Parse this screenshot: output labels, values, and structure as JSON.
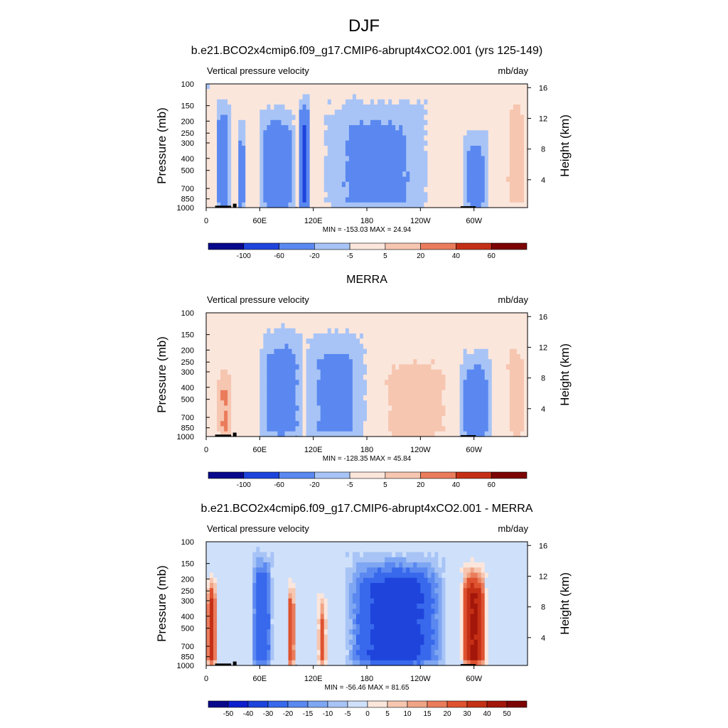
{
  "figure": {
    "title": "DJF"
  },
  "colors": {
    "main": [
      "#08088c",
      "#0d1ecc",
      "#1e44dc",
      "#3868ec",
      "#5a88f0",
      "#7ea6f2",
      "#a8c4f6",
      "#cfe0fa",
      "#fbe6dc",
      "#f6c6b0",
      "#f0a486",
      "#ea7c5c",
      "#de5230",
      "#c43016",
      "#a3160a",
      "#7c0404"
    ],
    "diff": [
      "#08088c",
      "#0d1ecc",
      "#1e44dc",
      "#3868ec",
      "#5a88f0",
      "#7ea6f2",
      "#a8c4f6",
      "#cfe0fa",
      "#fbe6dc",
      "#f6c6b0",
      "#f0a486",
      "#ea7c5c",
      "#de5230",
      "#c43016",
      "#a3160a",
      "#7c0404"
    ]
  },
  "panels": [
    {
      "title": "b.e21.BCO2x4cmip6.f09_g17.CMIP6-abrupt4xCO2.001 (yrs 125-149)",
      "left_label": "Vertical pressure velocity",
      "right_label": "mb/day",
      "ylabel": "Pressure (mb)",
      "ylabel_right": "Height (km)",
      "stats": "MIN = -153.03  MAX =  24.94",
      "colorbar_labels": [
        "-100",
        "-60",
        "-20",
        "-5",
        "5",
        "20",
        "40",
        "60"
      ],
      "palette": "main"
    },
    {
      "title": "MERRA",
      "left_label": "Vertical pressure velocity",
      "right_label": "mb/day",
      "ylabel": "Pressure (mb)",
      "ylabel_right": "Height (km)",
      "stats": "MIN = -128.35  MAX =  45.84",
      "colorbar_labels": [
        "-100",
        "-60",
        "-20",
        "-5",
        "5",
        "20",
        "40",
        "60"
      ],
      "palette": "main"
    },
    {
      "title": "b.e21.BCO2x4cmip6.f09_g17.CMIP6-abrupt4xCO2.001 - MERRA",
      "left_label": "Vertical pressure velocity",
      "right_label": "mb/day",
      "ylabel": "Pressure (mb)",
      "ylabel_right": "Height (km)",
      "stats": "MIN = -56.46  MAX =  81.65",
      "colorbar_labels": [
        "-50",
        "-40",
        "-30",
        "-20",
        "-15",
        "-10",
        "-5",
        "0",
        "5",
        "10",
        "15",
        "20",
        "30",
        "40",
        "50"
      ],
      "palette": "diff"
    }
  ],
  "chart_data": [
    {
      "type": "heatmap",
      "title": "b.e21.BCO2x4cmip6.f09_g17.CMIP6-abrupt4xCO2.001 (yrs 125-149)",
      "field": "Vertical pressure velocity",
      "units": "mb/day",
      "x_ticks": [
        "0",
        "60E",
        "120E",
        "180",
        "120W",
        "60W"
      ],
      "x_tick_lons": [
        0,
        60,
        120,
        180,
        240,
        300
      ],
      "xlim": [
        0,
        360
      ],
      "y_ticks": [
        "100",
        "150",
        "200",
        "250",
        "300",
        "400",
        "500",
        "700",
        "850",
        "1000"
      ],
      "y_tick_values": [
        100,
        150,
        200,
        250,
        300,
        400,
        500,
        700,
        850,
        1000
      ],
      "ylim": [
        1000,
        100
      ],
      "y_scale": "log",
      "y_right_ticks": [
        "16",
        "12",
        "8",
        "4"
      ],
      "y_right_values": [
        16,
        12,
        8,
        4
      ],
      "xlabel": "",
      "ylabel": "Pressure (mb)",
      "ylabel_right": "Height (km)",
      "min": -153.03,
      "max": 24.94,
      "contour_levels": [
        -100,
        -60,
        -20,
        -5,
        5,
        20,
        40,
        60
      ],
      "features": [
        {
          "lon_min": 10,
          "lon_max": 28,
          "p_top": 140,
          "value": -40
        },
        {
          "lon_min": 35,
          "lon_max": 44,
          "p_top": 200,
          "value": -30
        },
        {
          "lon_min": 58,
          "lon_max": 100,
          "p_top": 160,
          "value": -40
        },
        {
          "lon_min": 104,
          "lon_max": 116,
          "p_top": 130,
          "value": -60
        },
        {
          "lon_min": 130,
          "lon_max": 250,
          "p_top": 140,
          "value": -25
        },
        {
          "lon_min": 288,
          "lon_max": 315,
          "p_top": 250,
          "value": -40
        },
        {
          "lon_min": 335,
          "lon_max": 360,
          "p_top": 110,
          "value": 15
        }
      ]
    },
    {
      "type": "heatmap",
      "title": "MERRA",
      "field": "Vertical pressure velocity",
      "units": "mb/day",
      "x_ticks": [
        "0",
        "60E",
        "120E",
        "180",
        "120W",
        "60W"
      ],
      "x_tick_lons": [
        0,
        60,
        120,
        180,
        240,
        300
      ],
      "xlim": [
        0,
        360
      ],
      "y_ticks": [
        "100",
        "150",
        "200",
        "250",
        "300",
        "400",
        "500",
        "700",
        "850",
        "1000"
      ],
      "y_tick_values": [
        100,
        150,
        200,
        250,
        300,
        400,
        500,
        700,
        850,
        1000
      ],
      "ylim": [
        1000,
        100
      ],
      "y_scale": "log",
      "y_right_ticks": [
        "16",
        "12",
        "8",
        "4"
      ],
      "y_right_values": [
        16,
        12,
        8,
        4
      ],
      "xlabel": "",
      "ylabel": "Pressure (mb)",
      "ylabel_right": "Height (km)",
      "min": -128.35,
      "max": 45.84,
      "contour_levels": [
        -100,
        -60,
        -20,
        -5,
        5,
        20,
        40,
        60
      ],
      "features": [
        {
          "lon_min": 12,
          "lon_max": 30,
          "p_top": 250,
          "value": 25
        },
        {
          "lon_min": 60,
          "lon_max": 110,
          "p_top": 140,
          "value": -30
        },
        {
          "lon_min": 110,
          "lon_max": 180,
          "p_top": 150,
          "value": -25
        },
        {
          "lon_min": 195,
          "lon_max": 275,
          "p_top": 200,
          "value": 20
        },
        {
          "lon_min": 285,
          "lon_max": 320,
          "p_top": 220,
          "value": -40
        },
        {
          "lon_min": 335,
          "lon_max": 360,
          "p_top": 150,
          "value": 15
        }
      ]
    },
    {
      "type": "heatmap",
      "title": "b.e21.BCO2x4cmip6.f09_g17.CMIP6-abrupt4xCO2.001 - MERRA",
      "field": "Vertical pressure velocity",
      "units": "mb/day",
      "x_ticks": [
        "0",
        "60E",
        "120E",
        "180",
        "120W",
        "60W"
      ],
      "x_tick_lons": [
        0,
        60,
        120,
        180,
        240,
        300
      ],
      "xlim": [
        0,
        360
      ],
      "y_ticks": [
        "100",
        "150",
        "200",
        "250",
        "300",
        "400",
        "500",
        "700",
        "850",
        "1000"
      ],
      "y_tick_values": [
        100,
        150,
        200,
        250,
        300,
        400,
        500,
        700,
        850,
        1000
      ],
      "ylim": [
        1000,
        100
      ],
      "y_scale": "log",
      "y_right_ticks": [
        "16",
        "12",
        "8",
        "4"
      ],
      "y_right_values": [
        16,
        12,
        8,
        4
      ],
      "xlabel": "",
      "ylabel": "Pressure (mb)",
      "ylabel_right": "Height (km)",
      "min": -56.46,
      "max": 81.65,
      "contour_levels": [
        -50,
        -40,
        -30,
        -20,
        -15,
        -10,
        -5,
        0,
        5,
        10,
        15,
        20,
        30,
        40,
        50
      ],
      "features": [
        {
          "lon_min": 0,
          "lon_max": 12,
          "p_top": 180,
          "value": 35
        },
        {
          "lon_min": 50,
          "lon_max": 75,
          "p_top": 120,
          "value": -25
        },
        {
          "lon_min": 90,
          "lon_max": 100,
          "p_top": 200,
          "value": 30
        },
        {
          "lon_min": 125,
          "lon_max": 135,
          "p_top": 250,
          "value": 25
        },
        {
          "lon_min": 155,
          "lon_max": 270,
          "p_top": 130,
          "value": -35
        },
        {
          "lon_min": 285,
          "lon_max": 315,
          "p_top": 150,
          "value": 45
        }
      ]
    }
  ]
}
